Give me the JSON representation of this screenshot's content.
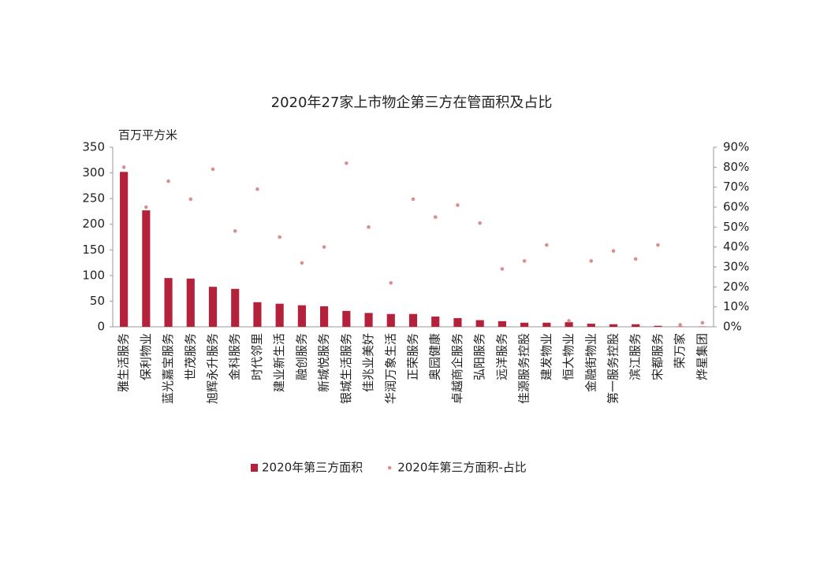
{
  "chart_data": {
    "type": "bar_scatter",
    "title": "2020年27家上市物企第三方在管面积及占比",
    "y_label": "百万平方米",
    "categories": [
      "雅生活服务",
      "保利物业",
      "蓝光嘉宝服务",
      "世茂服务",
      "旭辉永升服务",
      "金科服务",
      "时代邻里",
      "建业新生活",
      "融创服务",
      "新城悦服务",
      "银城生活服务",
      "佳兆业美好",
      "华润万象生活",
      "正荣服务",
      "奥园健康",
      "卓越商企服务",
      "弘阳服务",
      "远洋服务",
      "佳源服务控股",
      "建发物业",
      "恒大物业",
      "金融街物业",
      "第一服务控股",
      "滨江服务",
      "宋都服务",
      "荣万家",
      "烨星集团"
    ],
    "series": [
      {
        "name": "2020年第三方面积",
        "type": "bar",
        "color": "#b5203a",
        "values": [
          302,
          227,
          95,
          94,
          78,
          74,
          48,
          45,
          42,
          40,
          31,
          27,
          25,
          25,
          20,
          17,
          13,
          11,
          8,
          8,
          9,
          6,
          5,
          5,
          2,
          0.5,
          0.5
        ]
      },
      {
        "name": "2020年第三方面积-占比",
        "type": "scatter",
        "axis": "y2",
        "color": "#d98f8f",
        "values": [
          80,
          60,
          73,
          64,
          79,
          48,
          69,
          45,
          32,
          40,
          82,
          50,
          22,
          64,
          55,
          61,
          52,
          29,
          33,
          41,
          3,
          33,
          38,
          34,
          41,
          1,
          2
        ]
      }
    ],
    "ylim": [
      0,
      350
    ],
    "yticks": [
      0,
      50,
      100,
      150,
      200,
      250,
      300,
      350
    ],
    "y2lim": [
      0,
      90
    ],
    "y2ticks": [
      {
        "value": 0,
        "label": "0%"
      },
      {
        "value": 10,
        "label": "10%"
      },
      {
        "value": 20,
        "label": "20%"
      },
      {
        "value": 30,
        "label": "30%"
      },
      {
        "value": 40,
        "label": "40%"
      },
      {
        "value": 50,
        "label": "50%"
      },
      {
        "value": 60,
        "label": "60%"
      },
      {
        "value": 70,
        "label": "70%"
      },
      {
        "value": 80,
        "label": "80%"
      },
      {
        "value": 90,
        "label": "90%"
      }
    ],
    "legend": "bottom"
  }
}
